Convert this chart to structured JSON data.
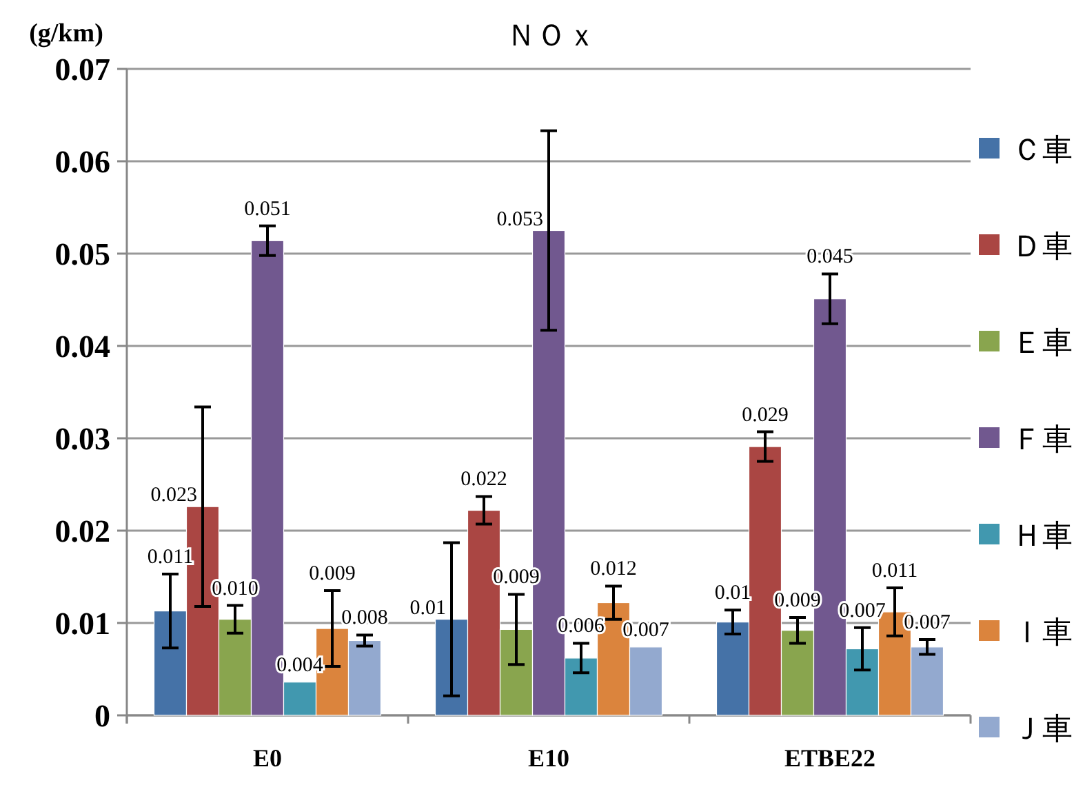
{
  "chart_data": {
    "type": "bar",
    "title": "ＮＯｘ",
    "ylabel": "(g/km)",
    "categories": [
      "E0",
      "E10",
      "ETBE22"
    ],
    "series": [
      {
        "name": "Ｃ車",
        "color": "#4572a7",
        "values": [
          0.0113,
          0.0104,
          0.0101
        ],
        "errors": [
          0.004,
          0.0083,
          0.0013
        ],
        "value_labels": [
          "0.011",
          "0.01",
          "0.01"
        ]
      },
      {
        "name": "Ｄ車",
        "color": "#aa4643",
        "values": [
          0.0226,
          0.0222,
          0.0291
        ],
        "errors": [
          0.0108,
          0.0015,
          0.0016
        ],
        "value_labels": [
          "0.023",
          "0.022",
          "0.029"
        ]
      },
      {
        "name": "Ｅ車",
        "color": "#89a54e",
        "values": [
          0.0104,
          0.0093,
          0.0092
        ],
        "errors": [
          0.0015,
          0.0038,
          0.0014
        ],
        "value_labels": [
          "0.010",
          "0.009",
          "0.009"
        ]
      },
      {
        "name": "Ｆ車",
        "color": "#71588f",
        "values": [
          0.0514,
          0.0525,
          0.0451
        ],
        "errors": [
          0.0016,
          0.0108,
          0.0027
        ],
        "value_labels": [
          "0.051",
          "0.053",
          "0.045"
        ]
      },
      {
        "name": "Ｈ車",
        "color": "#4198af",
        "values": [
          0.0036,
          0.0062,
          0.0072
        ],
        "errors": [
          null,
          0.0016,
          0.0023
        ],
        "value_labels": [
          "0.004",
          "0.006",
          "0.007"
        ]
      },
      {
        "name": "Ｉ車",
        "color": "#db843d",
        "values": [
          0.0094,
          0.0122,
          0.0112
        ],
        "errors": [
          0.0041,
          0.0018,
          0.0026
        ],
        "value_labels": [
          "0.009",
          "0.012",
          "0.011"
        ]
      },
      {
        "name": "Ｊ車",
        "color": "#93a9cf",
        "values": [
          0.0081,
          0.0074,
          0.0074
        ],
        "errors": [
          0.0006,
          null,
          0.0008
        ],
        "value_labels": [
          "0.008",
          "0.007",
          "0.007"
        ]
      }
    ],
    "ylim": [
      0,
      0.07
    ],
    "yticks": [
      0,
      0.01,
      0.02,
      0.03,
      0.04,
      0.05,
      0.06,
      0.07
    ],
    "grid": "y",
    "legend": "right"
  }
}
